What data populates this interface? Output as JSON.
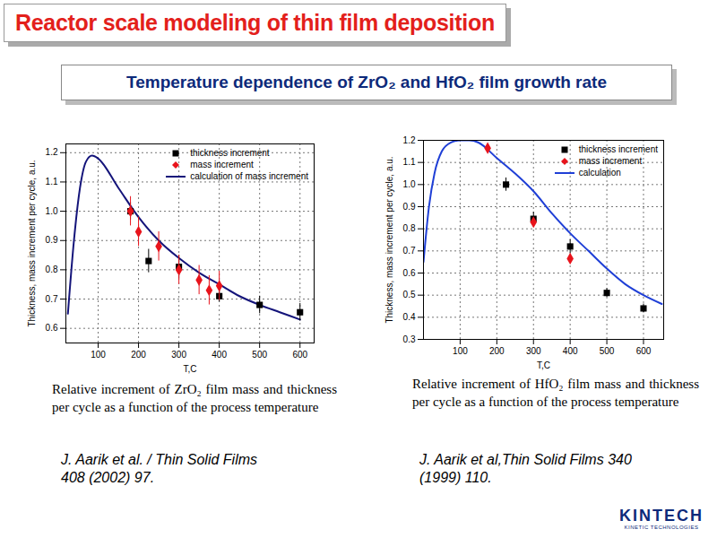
{
  "slide": {
    "title": "Reactor scale modeling of thin film deposition",
    "subtitle": "Temperature dependence of ZrO₂ and HfO₂ film growth rate",
    "logo": "KINTECH",
    "logo_subtitle": "KINETIC TECHNOLOGIES"
  },
  "chart_data": [
    {
      "type": "scatter",
      "caption": "Relative increment of ZrO₂ film mass and thickness per cycle as a function of the process temperature",
      "source": "J. Aarik et al. / Thin Solid Films 408 (2002) 97.",
      "x_label": "T,C",
      "y_label": "Thickness, mass increment per cycle, a.u.",
      "xlim": [
        20,
        635
      ],
      "ylim": [
        0.55,
        1.23
      ],
      "xticks": [
        100,
        200,
        300,
        400,
        500,
        600
      ],
      "yticks": [
        0.6,
        0.7,
        0.8,
        0.9,
        {
          "value": 1,
          "label": "1.0"
        },
        1.1,
        1.2
      ],
      "grid": true,
      "legend": "upper right",
      "series": [
        {
          "name": "thickness increment",
          "type": "scatter",
          "marker": "square",
          "color": "#000000",
          "x": [
            180,
            225,
            300,
            400,
            500,
            600
          ],
          "values": [
            1.0,
            0.83,
            0.81,
            0.71,
            0.68,
            0.655
          ],
          "errors": [
            0.03,
            0.04,
            0.04,
            0.02,
            0.03,
            0.03
          ]
        },
        {
          "name": "mass increment",
          "type": "scatter",
          "marker": "diamond",
          "color": "#e8141c",
          "x": [
            180,
            200,
            250,
            300,
            350,
            375,
            400
          ],
          "values": [
            1.0,
            0.93,
            0.88,
            0.8,
            0.765,
            0.73,
            0.745
          ],
          "errors": [
            0.05,
            0.05,
            0.05,
            0.05,
            0.05,
            0.05,
            0.05
          ]
        },
        {
          "name": "calculation of mass increment",
          "type": "line",
          "line_style": "solid",
          "color": "#14147a",
          "x": [
            25,
            40,
            55,
            70,
            85,
            100,
            150,
            200,
            250,
            300,
            350,
            400,
            450,
            500,
            550,
            600
          ],
          "values": [
            0.65,
            0.9,
            1.08,
            1.17,
            1.19,
            1.18,
            1.08,
            0.98,
            0.9,
            0.84,
            0.79,
            0.75,
            0.71,
            0.68,
            0.655,
            0.63
          ]
        }
      ]
    },
    {
      "type": "scatter",
      "caption": "Relative increment of HfO₂ film mass and thickness per cycle as a function of the process temperature",
      "source": "J. Aarik et al,Thin Solid Films 340 (1999) 110.",
      "x_label": "T,C",
      "y_label": "Thickness, mass increment per cycle, a.u.",
      "xlim": [
        0,
        655
      ],
      "ylim": [
        0.3,
        1.2
      ],
      "xticks": [
        100,
        200,
        300,
        400,
        500,
        600
      ],
      "yticks": [
        0.3,
        0.4,
        0.5,
        0.6,
        0.7,
        0.8,
        0.9,
        {
          "value": 1,
          "label": "1.0"
        },
        1.1,
        1.2
      ],
      "grid": true,
      "legend": "upper right",
      "series": [
        {
          "name": "thickness increment",
          "type": "scatter",
          "marker": "square",
          "color": "#000000",
          "x": [
            225,
            300,
            400,
            500,
            600
          ],
          "values": [
            1.0,
            0.845,
            0.72,
            0.51,
            0.44
          ],
          "errors": [
            0.03,
            0.03,
            0.03,
            0.02,
            0.02
          ]
        },
        {
          "name": "mass increment",
          "type": "scatter",
          "marker": "diamond",
          "color": "#e8141c",
          "x": [
            175,
            300,
            400
          ],
          "values": [
            1.165,
            0.83,
            0.665
          ]
        },
        {
          "name": "calculation",
          "type": "line",
          "line_style": "solid",
          "color": "#1f3fd6",
          "x": [
            0,
            15,
            30,
            50,
            75,
            100,
            125,
            150,
            200,
            250,
            300,
            350,
            400,
            450,
            500,
            550,
            600,
            650
          ],
          "values": [
            0.65,
            0.9,
            1.05,
            1.15,
            1.19,
            1.2,
            1.2,
            1.19,
            1.12,
            1.05,
            0.97,
            0.87,
            0.78,
            0.7,
            0.62,
            0.55,
            0.5,
            0.46
          ]
        }
      ]
    }
  ]
}
